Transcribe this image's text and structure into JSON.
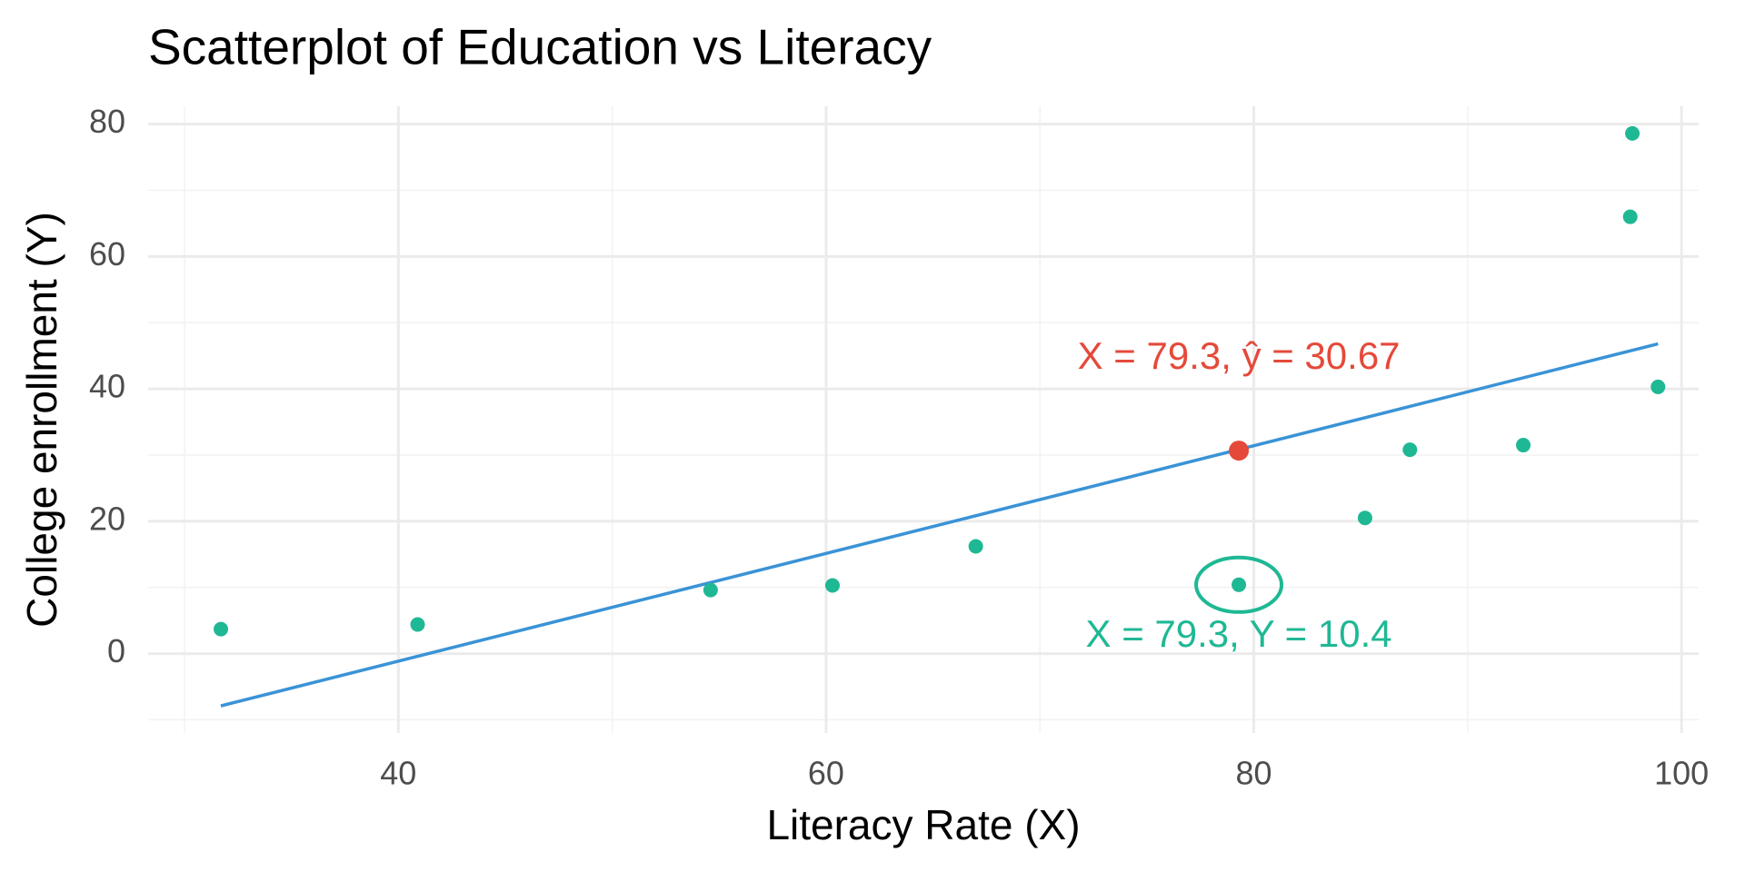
{
  "chart_data": {
    "type": "scatter",
    "title": "Scatterplot of Education vs Literacy",
    "x_label": "Literacy Rate (X)",
    "y_label": "College enrollment (Y)",
    "x": [
      31.7,
      40.9,
      54.6,
      60.3,
      67.0,
      79.3,
      85.2,
      87.3,
      92.6,
      97.7,
      97.6,
      98.9
    ],
    "values": [
      3.7,
      4.4,
      9.6,
      10.3,
      16.2,
      10.4,
      20.5,
      30.8,
      31.5,
      78.6,
      66.0,
      40.3
    ],
    "color": "#1fb894",
    "fit_line": {
      "x": [
        31.7,
        98.9
      ],
      "values": [
        -7.9,
        46.8
      ],
      "color": "#3a93d6"
    },
    "annotations": [
      {
        "text": "X = 79.3, ŷ = 30.67",
        "x": 79.3,
        "y": 30.67,
        "color": "#e5493a",
        "position": "above",
        "marker": "point"
      },
      {
        "text": "X = 79.3, Y = 10.4",
        "x": 79.3,
        "y": 10.4,
        "color": "#1fb894",
        "position": "below",
        "marker": "ellipse"
      }
    ],
    "xlim": [
      28.3,
      100.8
    ],
    "ylim": [
      -12.0,
      82.7
    ],
    "xticks": [
      40,
      60,
      80,
      100
    ],
    "yticks": [
      0,
      20,
      40,
      60,
      80
    ],
    "xminor": [
      30,
      50,
      70,
      90
    ],
    "yminor": [
      -10,
      10,
      30,
      50,
      70
    ],
    "grid": true
  }
}
